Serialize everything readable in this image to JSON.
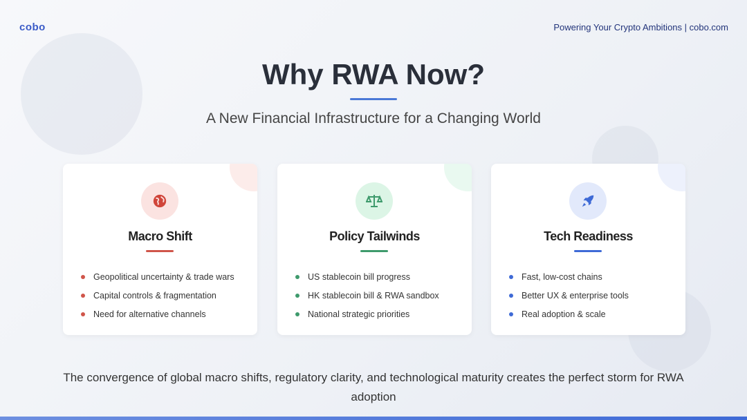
{
  "header": {
    "logo": "cobo",
    "tagline": "Powering Your Crypto Ambitions | cobo.com"
  },
  "title": "Why RWA Now?",
  "subtitle": "A New Financial Infrastructure for a Changing World",
  "cards": [
    {
      "title": "Macro Shift",
      "icon": "globe-icon",
      "accent": "#d0554a",
      "tint": "#fbe3e1",
      "bullets": [
        "Geopolitical uncertainty & trade wars",
        "Capital controls & fragmentation",
        "Need for alternative channels"
      ]
    },
    {
      "title": "Policy Tailwinds",
      "icon": "scale-icon",
      "accent": "#3e9a6c",
      "tint": "#dcf5e6",
      "bullets": [
        "US stablecoin bill progress",
        "HK stablecoin bill & RWA sandbox",
        "National strategic priorities"
      ]
    },
    {
      "title": "Tech Readiness",
      "icon": "rocket-icon",
      "accent": "#3e6ad6",
      "tint": "#e2e9fb",
      "bullets": [
        "Fast, low-cost chains",
        "Better UX & enterprise tools",
        "Real adoption & scale"
      ]
    }
  ],
  "footer": "The convergence of global macro shifts, regulatory clarity, and technological maturity creates the perfect storm for RWA adoption"
}
